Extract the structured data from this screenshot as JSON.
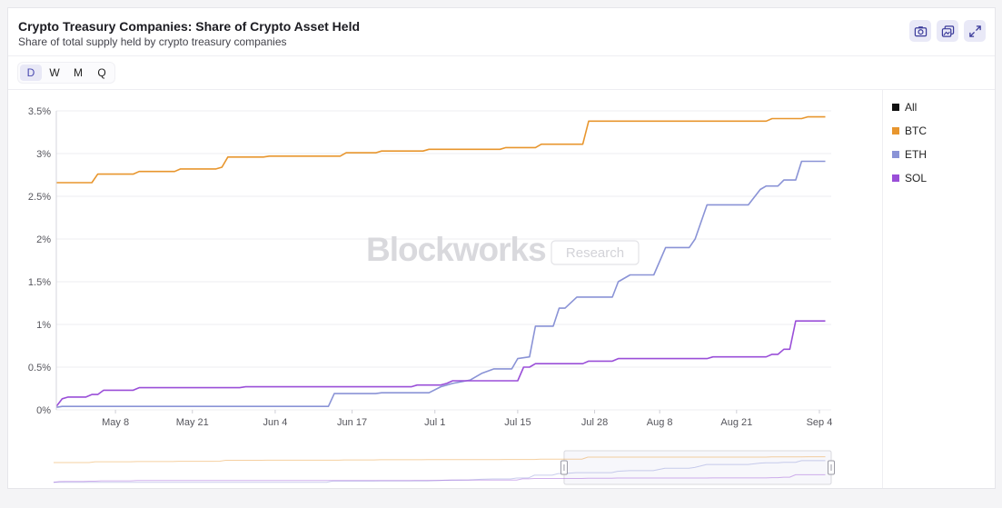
{
  "header": {
    "title": "Crypto Treasury Companies: Share of Crypto Asset Held",
    "subtitle": "Share of total supply held by crypto treasury companies"
  },
  "toolbar": {
    "icons": [
      "camera-icon",
      "copy-icon",
      "expand-icon"
    ]
  },
  "periods": [
    "D",
    "W",
    "M",
    "Q"
  ],
  "active_period": "D",
  "watermark": {
    "brand": "Blockworks",
    "tag": "Research"
  },
  "legend": [
    {
      "label": "All",
      "color": "#111111"
    },
    {
      "label": "BTC",
      "color": "#e8962e"
    },
    {
      "label": "ETH",
      "color": "#8a93d6"
    },
    {
      "label": "SOL",
      "color": "#9a4fd8"
    }
  ],
  "chart_data": {
    "type": "line",
    "x_range": [
      "2025-04-28",
      "2025-09-06"
    ],
    "x_ticks": [
      {
        "date": "2025-05-08",
        "label": "May 8"
      },
      {
        "date": "2025-05-21",
        "label": "May 21"
      },
      {
        "date": "2025-06-04",
        "label": "Jun 4"
      },
      {
        "date": "2025-06-17",
        "label": "Jun 17"
      },
      {
        "date": "2025-07-01",
        "label": "Jul 1"
      },
      {
        "date": "2025-07-15",
        "label": "Jul 15"
      },
      {
        "date": "2025-07-28",
        "label": "Jul 28"
      },
      {
        "date": "2025-08-08",
        "label": "Aug 8"
      },
      {
        "date": "2025-08-21",
        "label": "Aug 21"
      },
      {
        "date": "2025-09-04",
        "label": "Sep 4"
      }
    ],
    "y_ticks": [
      {
        "value": 0,
        "label": "0%"
      },
      {
        "value": 0.5,
        "label": "0.5%"
      },
      {
        "value": 1,
        "label": "1%"
      },
      {
        "value": 1.5,
        "label": "1.5%"
      },
      {
        "value": 2,
        "label": "2%"
      },
      {
        "value": 2.5,
        "label": "2.5%"
      },
      {
        "value": 3,
        "label": "3%"
      },
      {
        "value": 3.5,
        "label": "3.5%"
      }
    ],
    "ylim": [
      0,
      3.5
    ],
    "grid": true,
    "legend_position": "right",
    "series": [
      {
        "name": "BTC",
        "color": "#e8962e",
        "points": [
          [
            "2025-04-28",
            2.66
          ],
          [
            "2025-05-04",
            2.66
          ],
          [
            "2025-05-05",
            2.76
          ],
          [
            "2025-05-11",
            2.76
          ],
          [
            "2025-05-12",
            2.79
          ],
          [
            "2025-05-18",
            2.79
          ],
          [
            "2025-05-19",
            2.82
          ],
          [
            "2025-05-25",
            2.82
          ],
          [
            "2025-05-26",
            2.84
          ],
          [
            "2025-05-27",
            2.96
          ],
          [
            "2025-06-02",
            2.96
          ],
          [
            "2025-06-03",
            2.97
          ],
          [
            "2025-06-15",
            2.97
          ],
          [
            "2025-06-16",
            3.01
          ],
          [
            "2025-06-21",
            3.01
          ],
          [
            "2025-06-22",
            3.03
          ],
          [
            "2025-06-29",
            3.03
          ],
          [
            "2025-06-30",
            3.05
          ],
          [
            "2025-07-12",
            3.05
          ],
          [
            "2025-07-13",
            3.07
          ],
          [
            "2025-07-18",
            3.07
          ],
          [
            "2025-07-19",
            3.11
          ],
          [
            "2025-07-26",
            3.11
          ],
          [
            "2025-07-27",
            3.38
          ],
          [
            "2025-08-26",
            3.38
          ],
          [
            "2025-08-27",
            3.41
          ],
          [
            "2025-09-01",
            3.41
          ],
          [
            "2025-09-02",
            3.43
          ],
          [
            "2025-09-05",
            3.43
          ]
        ]
      },
      {
        "name": "ETH",
        "color": "#8a93d6",
        "points": [
          [
            "2025-04-28",
            0.03
          ],
          [
            "2025-04-29",
            0.04
          ],
          [
            "2025-06-13",
            0.04
          ],
          [
            "2025-06-14",
            0.19
          ],
          [
            "2025-06-21",
            0.19
          ],
          [
            "2025-06-22",
            0.2
          ],
          [
            "2025-06-30",
            0.2
          ],
          [
            "2025-07-02",
            0.27
          ],
          [
            "2025-07-04",
            0.31
          ],
          [
            "2025-07-07",
            0.35
          ],
          [
            "2025-07-09",
            0.43
          ],
          [
            "2025-07-11",
            0.48
          ],
          [
            "2025-07-14",
            0.48
          ],
          [
            "2025-07-15",
            0.6
          ],
          [
            "2025-07-17",
            0.62
          ],
          [
            "2025-07-18",
            0.98
          ],
          [
            "2025-07-21",
            0.98
          ],
          [
            "2025-07-22",
            1.19
          ],
          [
            "2025-07-23",
            1.19
          ],
          [
            "2025-07-25",
            1.32
          ],
          [
            "2025-07-31",
            1.32
          ],
          [
            "2025-08-01",
            1.5
          ],
          [
            "2025-08-03",
            1.58
          ],
          [
            "2025-08-07",
            1.58
          ],
          [
            "2025-08-09",
            1.9
          ],
          [
            "2025-08-13",
            1.9
          ],
          [
            "2025-08-14",
            2.0
          ],
          [
            "2025-08-16",
            2.4
          ],
          [
            "2025-08-23",
            2.4
          ],
          [
            "2025-08-25",
            2.58
          ],
          [
            "2025-08-26",
            2.62
          ],
          [
            "2025-08-28",
            2.62
          ],
          [
            "2025-08-29",
            2.69
          ],
          [
            "2025-08-31",
            2.69
          ],
          [
            "2025-09-01",
            2.91
          ],
          [
            "2025-09-05",
            2.91
          ]
        ]
      },
      {
        "name": "SOL",
        "color": "#9a4fd8",
        "points": [
          [
            "2025-04-28",
            0.04
          ],
          [
            "2025-04-29",
            0.13
          ],
          [
            "2025-04-30",
            0.15
          ],
          [
            "2025-05-03",
            0.15
          ],
          [
            "2025-05-04",
            0.18
          ],
          [
            "2025-05-05",
            0.18
          ],
          [
            "2025-05-06",
            0.23
          ],
          [
            "2025-05-11",
            0.23
          ],
          [
            "2025-05-12",
            0.26
          ],
          [
            "2025-05-29",
            0.26
          ],
          [
            "2025-05-30",
            0.27
          ],
          [
            "2025-06-27",
            0.27
          ],
          [
            "2025-06-28",
            0.29
          ],
          [
            "2025-07-02",
            0.29
          ],
          [
            "2025-07-03",
            0.31
          ],
          [
            "2025-07-04",
            0.34
          ],
          [
            "2025-07-15",
            0.34
          ],
          [
            "2025-07-16",
            0.5
          ],
          [
            "2025-07-17",
            0.5
          ],
          [
            "2025-07-18",
            0.54
          ],
          [
            "2025-07-26",
            0.54
          ],
          [
            "2025-07-27",
            0.57
          ],
          [
            "2025-07-31",
            0.57
          ],
          [
            "2025-08-01",
            0.6
          ],
          [
            "2025-08-16",
            0.6
          ],
          [
            "2025-08-17",
            0.62
          ],
          [
            "2025-08-26",
            0.62
          ],
          [
            "2025-08-27",
            0.65
          ],
          [
            "2025-08-28",
            0.65
          ],
          [
            "2025-08-29",
            0.71
          ],
          [
            "2025-08-30",
            0.71
          ],
          [
            "2025-08-31",
            1.04
          ],
          [
            "2025-09-05",
            1.04
          ]
        ]
      }
    ],
    "navigator": {
      "window": [
        "2025-07-23",
        "2025-09-06"
      ]
    }
  }
}
